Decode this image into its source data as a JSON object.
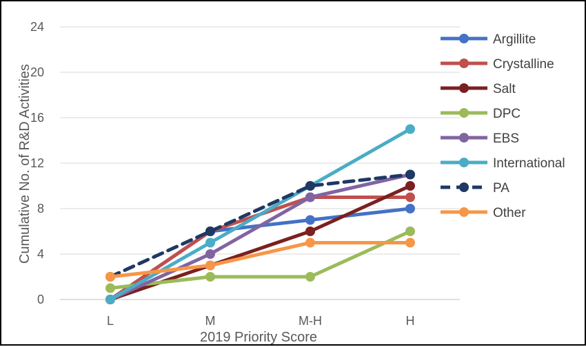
{
  "chart_data": {
    "type": "line",
    "title": "",
    "xlabel": "2019 Priority Score",
    "ylabel": "Cumulative No. of R&D Activities",
    "categories": [
      "L",
      "M",
      "M-H",
      "H"
    ],
    "ylim": [
      0,
      24
    ],
    "yticks": [
      0,
      4,
      8,
      12,
      16,
      20,
      24
    ],
    "grid": true,
    "legend_position": "right",
    "series": [
      {
        "name": "Argillite",
        "values": [
          0,
          6,
          7,
          8
        ],
        "color": "#4472C4",
        "dashed": false
      },
      {
        "name": "Crystalline",
        "values": [
          0,
          6,
          9,
          9
        ],
        "color": "#C0504D",
        "dashed": false
      },
      {
        "name": "Salt",
        "values": [
          0,
          3,
          6,
          10
        ],
        "color": "#7B2020",
        "dashed": false
      },
      {
        "name": "DPC",
        "values": [
          1,
          2,
          2,
          6
        ],
        "color": "#9BBB59",
        "dashed": false
      },
      {
        "name": "EBS",
        "values": [
          0,
          4,
          9,
          11
        ],
        "color": "#8064A2",
        "dashed": false
      },
      {
        "name": "International",
        "values": [
          0,
          5,
          10,
          15
        ],
        "color": "#4BACC6",
        "dashed": false
      },
      {
        "name": "PA",
        "values": [
          2,
          6,
          10,
          11
        ],
        "color": "#1F3864",
        "dashed": true
      },
      {
        "name": "Other",
        "values": [
          2,
          3,
          5,
          5
        ],
        "color": "#F79646",
        "dashed": false
      }
    ]
  }
}
